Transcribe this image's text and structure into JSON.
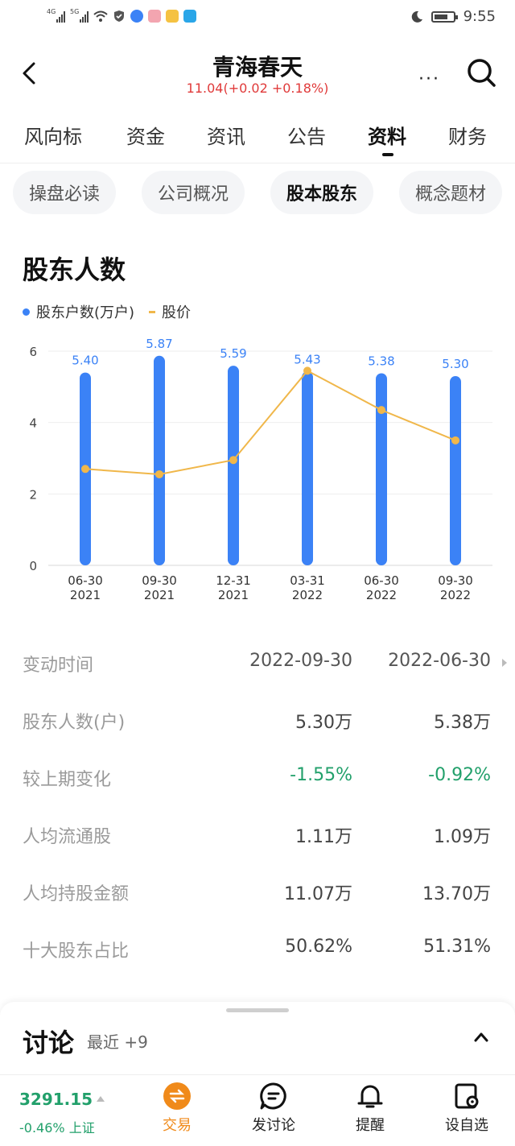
{
  "status_bar": {
    "signal1": "4G",
    "signal2": "5G",
    "time": "9:55",
    "battery_level": 0.75
  },
  "header": {
    "title": "青海春天",
    "quote": "11.04(+0.02 +0.18%)",
    "more": "···"
  },
  "tabs": [
    {
      "label": "风向标"
    },
    {
      "label": "资金"
    },
    {
      "label": "资讯"
    },
    {
      "label": "公告"
    },
    {
      "label": "资料",
      "active": true
    },
    {
      "label": "财务"
    }
  ],
  "subtabs": [
    {
      "label": "操盘必读"
    },
    {
      "label": "公司概况"
    },
    {
      "label": "股本股东",
      "active": true
    },
    {
      "label": "概念题材"
    }
  ],
  "section_title": "股东人数",
  "legend": {
    "series1": "股东户数(万户)",
    "series2": "股价"
  },
  "chart_data": {
    "type": "bar",
    "categories": [
      "06-30\n2021",
      "09-30\n2021",
      "12-31\n2021",
      "03-31\n2022",
      "06-30\n2022",
      "09-30\n2022"
    ],
    "category_line1": [
      "06-30",
      "09-30",
      "12-31",
      "03-31",
      "06-30",
      "09-30"
    ],
    "category_line2": [
      "2021",
      "2021",
      "2021",
      "2022",
      "2022",
      "2022"
    ],
    "series": [
      {
        "name": "股东户数(万户)",
        "type": "bar",
        "color": "#3b82f6",
        "values": [
          5.4,
          5.87,
          5.59,
          5.43,
          5.38,
          5.3
        ],
        "labels": [
          "5.40",
          "5.87",
          "5.59",
          "5.43",
          "5.38",
          "5.30"
        ]
      },
      {
        "name": "股价",
        "type": "line",
        "color": "#f0b74a",
        "values": [
          2.7,
          2.55,
          2.95,
          5.45,
          4.35,
          3.5
        ]
      }
    ],
    "yticks": [
      "0",
      "2",
      "4",
      "6"
    ],
    "ylim": [
      0,
      6
    ],
    "grid": true,
    "legend_position": "top-left"
  },
  "table": {
    "header": {
      "label": "变动时间",
      "c1": "2022-09-30",
      "c2": "2022-06-30"
    },
    "rows": [
      {
        "label": "股东人数(户)",
        "c1": "5.30万",
        "c2": "5.38万"
      },
      {
        "label": "较上期变化",
        "c1": "-1.55%",
        "c2": "-0.92%",
        "tone": "green"
      },
      {
        "label": "人均流通股",
        "c1": "1.11万",
        "c2": "1.09万"
      },
      {
        "label": "人均持股金额",
        "c1": "11.07万",
        "c2": "13.70万"
      },
      {
        "label": "十大股东占比",
        "c1": "50.62%",
        "c2": "51.31%"
      }
    ]
  },
  "discussion": {
    "title": "讨论",
    "meta": "最近 +9"
  },
  "bottom_bar": {
    "index_value": "3291.15",
    "index_change": "-0.46% 上证",
    "nav": [
      {
        "label": "交易",
        "icon": "trade-icon"
      },
      {
        "label": "发讨论",
        "icon": "chat-icon"
      },
      {
        "label": "提醒",
        "icon": "bell-icon"
      },
      {
        "label": "设自选",
        "icon": "add-watchlist-icon"
      }
    ]
  },
  "colors": {
    "bar": "#3b82f6",
    "line": "#f0b74a",
    "up": "#e03a3a",
    "down": "#22a06b",
    "trade": "#f08a1a"
  }
}
